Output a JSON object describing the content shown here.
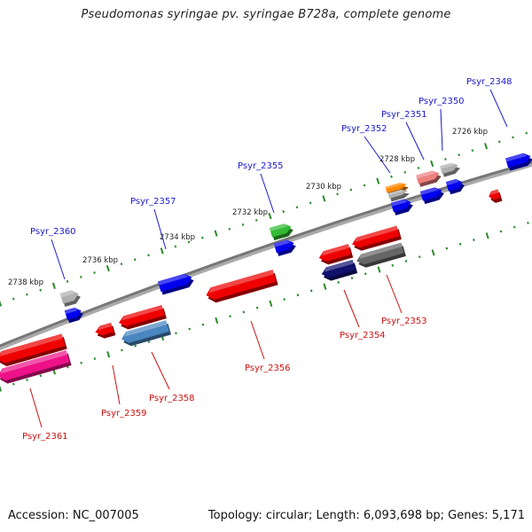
{
  "title": "Pseudomonas syringae pv. syringae B728a, complete genome",
  "footer": {
    "accession": "Accession: NC_007005",
    "summary": "Topology: circular; Length: 6,093,698 bp; Genes: 5,171"
  },
  "ruler_labels": [
    "2726 kbp",
    "2728 kbp",
    "2730 kbp",
    "2732 kbp",
    "2734 kbp",
    "2736 kbp",
    "2738 kbp"
  ],
  "colors": {
    "forward_label": "#1a1acc",
    "reverse_label": "#cc1111",
    "backbone": "#777777",
    "tick": "#2a8a2a"
  },
  "genes": [
    {
      "label": "Psyr_2348",
      "strand": "forward",
      "color": "#0000ee"
    },
    {
      "label": "Psyr_2350",
      "strand": "forward",
      "color": "#b0b0b0"
    },
    {
      "label": "Psyr_2351",
      "strand": "forward",
      "color": "#ee8080"
    },
    {
      "label": "Psyr_2352",
      "strand": "forward",
      "color": "#ff8800"
    },
    {
      "label": "Psyr_2355",
      "strand": "forward",
      "color": "#33bb33"
    },
    {
      "label": "Psyr_2357",
      "strand": "forward",
      "color": "#0000ee"
    },
    {
      "label": "Psyr_2360",
      "strand": "forward",
      "color": "#b0b0b0"
    },
    {
      "label": "Psyr_2353",
      "strand": "reverse",
      "color": "#666666"
    },
    {
      "label": "Psyr_2354",
      "strand": "reverse",
      "color": "#10106e"
    },
    {
      "label": "Psyr_2356",
      "strand": "reverse",
      "color": "#ee0000"
    },
    {
      "label": "Psyr_2358",
      "strand": "reverse",
      "color": "#4a86c0"
    },
    {
      "label": "Psyr_2359",
      "strand": "reverse",
      "color": "#ee0000"
    },
    {
      "label": "Psyr_2361",
      "strand": "reverse",
      "color": "#ee1188"
    }
  ]
}
